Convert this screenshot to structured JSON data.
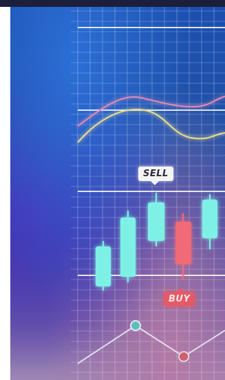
{
  "image": {
    "sell_label": "SELL",
    "buy_label": "BUY",
    "colors": {
      "bullish": "#7ff0e6",
      "bearish": "#f06a78",
      "grid": "#ffffff",
      "line_pink": "#e08bb6",
      "line_yellow": "#e9e08a"
    }
  }
}
